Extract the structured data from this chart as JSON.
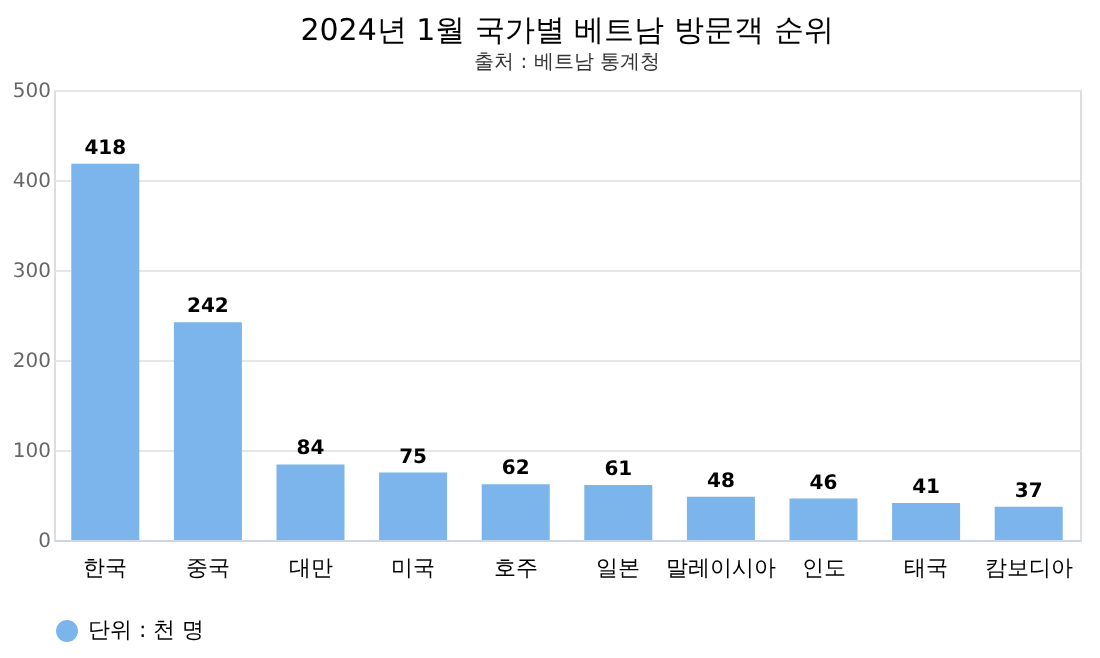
{
  "chart_data": {
    "type": "bar",
    "title": "2024년 1월 국가별 베트남 방문객 순위",
    "subtitle": "출처 : 베트남 통계청",
    "categories": [
      "한국",
      "중국",
      "대만",
      "미국",
      "호주",
      "일본",
      "말레이시아",
      "인도",
      "태국",
      "캄보디아"
    ],
    "series": [
      {
        "name": "단위 : 천 명",
        "color": "#7cb5ec",
        "values": [
          418,
          242,
          84,
          75,
          62,
          61,
          48,
          46,
          41,
          37
        ]
      }
    ],
    "ylim": [
      0,
      500
    ],
    "yticks": [
      0,
      100,
      200,
      300,
      400,
      500
    ],
    "grid": "y",
    "legend": "bottom",
    "data_labels": true
  }
}
